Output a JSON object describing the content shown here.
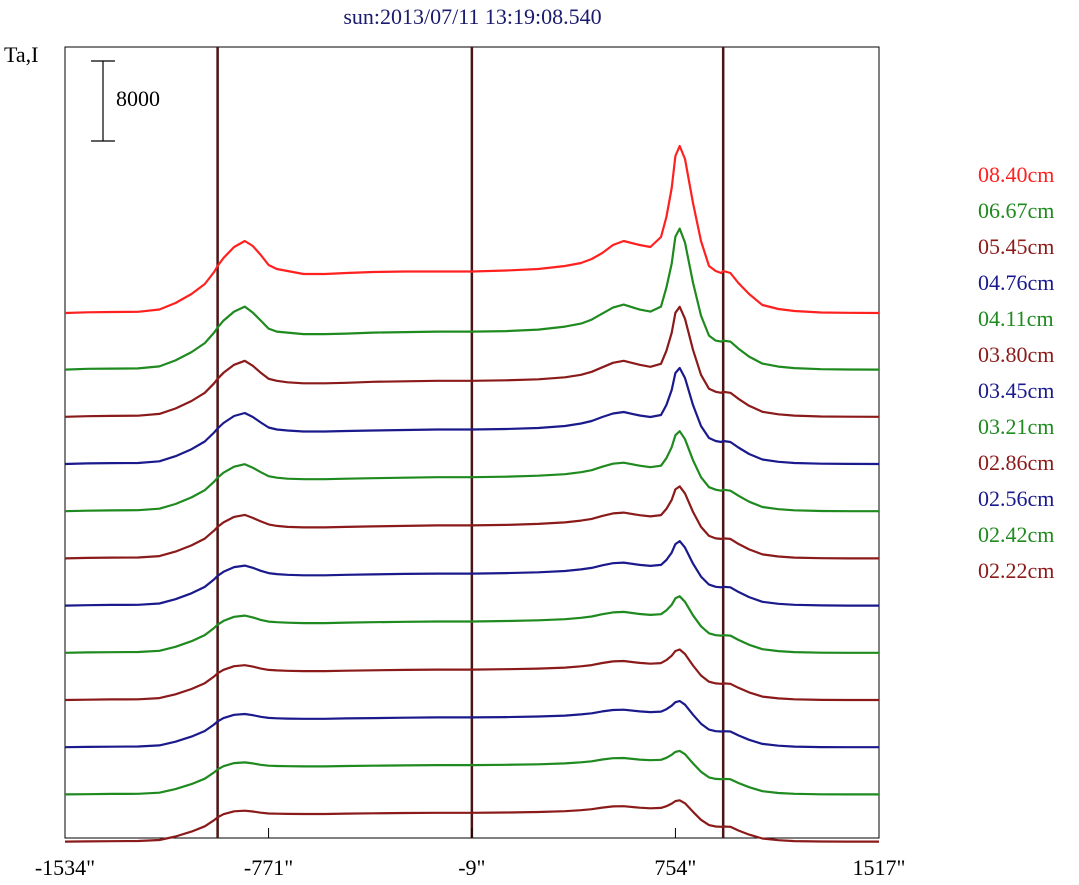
{
  "chart_data": {
    "type": "line",
    "title": "sun:2013/07/11 13:19:08.540",
    "ylabel": "Ta,I",
    "xlabel": "",
    "scale_bar_label": "8000",
    "xlim": [
      -1534,
      1517
    ],
    "x_ticks": [
      {
        "value": -1534,
        "label": "-1534\""
      },
      {
        "value": -771,
        "label": "-771\""
      },
      {
        "value": -9,
        "label": "-9\""
      },
      {
        "value": 754,
        "label": "754\""
      },
      {
        "value": 1517,
        "label": "1517\""
      }
    ],
    "vertical_lines_x": [
      -962,
      -9,
      933
    ],
    "grid": false,
    "legend_position": "right",
    "profile_x": [
      -1534,
      -1450,
      -1360,
      -1260,
      -1180,
      -1120,
      -1060,
      -1010,
      -975,
      -962,
      -940,
      -900,
      -860,
      -830,
      -800,
      -771,
      -740,
      -700,
      -640,
      -560,
      -480,
      -380,
      -260,
      -140,
      -9,
      120,
      240,
      340,
      400,
      440,
      480,
      520,
      560,
      620,
      660,
      700,
      720,
      740,
      754,
      770,
      790,
      820,
      850,
      880,
      905,
      925,
      933,
      960,
      990,
      1030,
      1080,
      1140,
      1200,
      1300,
      1400,
      1517
    ],
    "series": [
      {
        "name": "08.40cm",
        "color": "#ff2020",
        "baseline": 2300,
        "values": [
          0,
          70,
          100,
          120,
          350,
          1000,
          1900,
          2900,
          4100,
          4700,
          5500,
          6600,
          7200,
          6700,
          5800,
          4800,
          4400,
          4200,
          3900,
          3900,
          4000,
          4100,
          4150,
          4150,
          4150,
          4250,
          4400,
          4700,
          5000,
          5400,
          6000,
          6800,
          7200,
          6800,
          6600,
          7600,
          9600,
          12500,
          15700,
          16700,
          15400,
          11000,
          7200,
          4700,
          4200,
          4000,
          4200,
          4000,
          3000,
          1900,
          800,
          400,
          200,
          50,
          20,
          0
        ]
      },
      {
        "name": "06.67cm",
        "color": "#1f8a1f",
        "baseline": 2000,
        "values": [
          0,
          80,
          100,
          120,
          320,
          920,
          1750,
          2650,
          3700,
          4200,
          4900,
          5800,
          6300,
          5700,
          4900,
          4100,
          3800,
          3700,
          3550,
          3550,
          3600,
          3700,
          3750,
          3800,
          3800,
          3850,
          4000,
          4300,
          4600,
          5000,
          5600,
          6200,
          6500,
          6000,
          5800,
          6300,
          8200,
          10600,
          13300,
          14100,
          12700,
          8700,
          5400,
          3400,
          2900,
          2800,
          2900,
          2800,
          2100,
          1300,
          600,
          300,
          150,
          40,
          10,
          0
        ]
      },
      {
        "name": "05.45cm",
        "color": "#8b1a1a",
        "baseline": 1750,
        "values": [
          0,
          60,
          90,
          110,
          290,
          830,
          1580,
          2400,
          3350,
          3800,
          4400,
          5200,
          5600,
          5100,
          4400,
          3800,
          3600,
          3450,
          3350,
          3350,
          3400,
          3500,
          3550,
          3600,
          3600,
          3650,
          3750,
          3950,
          4200,
          4500,
          4950,
          5400,
          5600,
          5200,
          5000,
          5300,
          6600,
          8400,
          10400,
          11000,
          9800,
          6700,
          4200,
          2800,
          2500,
          2400,
          2500,
          2400,
          1800,
          1100,
          500,
          250,
          120,
          30,
          10,
          0
        ]
      },
      {
        "name": "04.76cm",
        "color": "#1a1a8c",
        "baseline": 1500,
        "values": [
          0,
          60,
          90,
          100,
          270,
          780,
          1480,
          2250,
          3150,
          3550,
          4100,
          4800,
          5100,
          4700,
          4150,
          3650,
          3450,
          3350,
          3250,
          3250,
          3300,
          3350,
          3400,
          3450,
          3450,
          3500,
          3600,
          3800,
          4050,
          4300,
          4700,
          5050,
          5200,
          4850,
          4700,
          4900,
          5900,
          7400,
          9100,
          9600,
          8600,
          5900,
          3800,
          2600,
          2300,
          2200,
          2300,
          2200,
          1650,
          1000,
          450,
          220,
          100,
          30,
          10,
          0
        ]
      },
      {
        "name": "04.11cm",
        "color": "#1f8a1f",
        "baseline": 1250,
        "values": [
          0,
          55,
          85,
          100,
          250,
          720,
          1380,
          2100,
          2950,
          3350,
          3850,
          4450,
          4700,
          4350,
          3900,
          3500,
          3350,
          3250,
          3200,
          3200,
          3250,
          3300,
          3350,
          3400,
          3400,
          3450,
          3550,
          3700,
          3900,
          4100,
          4450,
          4750,
          4850,
          4550,
          4400,
          4550,
          5300,
          6400,
          7600,
          8000,
          7200,
          5100,
          3400,
          2400,
          2150,
          2050,
          2150,
          2050,
          1550,
          950,
          420,
          200,
          90,
          25,
          8,
          0
        ]
      },
      {
        "name": "03.80cm",
        "color": "#8b1a1a",
        "baseline": 1000,
        "values": [
          0,
          50,
          80,
          90,
          230,
          680,
          1300,
          1980,
          2780,
          3150,
          3600,
          4150,
          4350,
          4050,
          3700,
          3400,
          3250,
          3150,
          3100,
          3100,
          3150,
          3200,
          3250,
          3300,
          3300,
          3350,
          3450,
          3600,
          3780,
          3950,
          4250,
          4500,
          4580,
          4320,
          4200,
          4330,
          4950,
          5850,
          6900,
          7200,
          6500,
          4650,
          3150,
          2250,
          2000,
          1950,
          2000,
          1950,
          1450,
          900,
          400,
          190,
          85,
          22,
          7,
          0
        ]
      },
      {
        "name": "03.45cm",
        "color": "#1a1a8c",
        "baseline": 750,
        "values": [
          0,
          45,
          70,
          85,
          210,
          640,
          1230,
          1870,
          2620,
          2970,
          3380,
          3850,
          4000,
          3780,
          3480,
          3250,
          3150,
          3080,
          3030,
          3030,
          3080,
          3120,
          3170,
          3200,
          3200,
          3250,
          3330,
          3460,
          3620,
          3770,
          4030,
          4240,
          4300,
          4070,
          3970,
          4070,
          4560,
          5300,
          6150,
          6450,
          5800,
          4200,
          2900,
          2100,
          1880,
          1830,
          1880,
          1830,
          1370,
          850,
          380,
          180,
          80,
          20,
          6,
          0
        ]
      },
      {
        "name": "03.21cm",
        "color": "#1f8a1f",
        "baseline": 500,
        "values": [
          0,
          40,
          65,
          80,
          200,
          600,
          1160,
          1770,
          2480,
          2810,
          3190,
          3600,
          3720,
          3540,
          3290,
          3120,
          3060,
          3010,
          2970,
          2970,
          3020,
          3060,
          3100,
          3130,
          3130,
          3180,
          3250,
          3360,
          3500,
          3630,
          3860,
          4040,
          4090,
          3880,
          3790,
          3860,
          4240,
          4800,
          5450,
          5650,
          5100,
          3750,
          2650,
          1950,
          1760,
          1720,
          1760,
          1720,
          1290,
          800,
          360,
          170,
          75,
          18,
          5,
          0
        ]
      },
      {
        "name": "02.86cm",
        "color": "#8b1a1a",
        "baseline": 250,
        "values": [
          0,
          35,
          60,
          75,
          190,
          570,
          1100,
          1680,
          2350,
          2670,
          3020,
          3380,
          3480,
          3340,
          3140,
          3010,
          2960,
          2920,
          2890,
          2890,
          2930,
          2970,
          3010,
          3040,
          3040,
          3080,
          3140,
          3240,
          3370,
          3490,
          3700,
          3860,
          3900,
          3710,
          3630,
          3690,
          3990,
          4430,
          4900,
          5050,
          4600,
          3450,
          2450,
          1830,
          1660,
          1620,
          1660,
          1620,
          1220,
          760,
          340,
          160,
          70,
          16,
          5,
          0
        ]
      },
      {
        "name": "02.56cm",
        "color": "#1a1a8c",
        "baseline": 0,
        "values": [
          0,
          30,
          55,
          70,
          180,
          550,
          1060,
          1620,
          2270,
          2580,
          2910,
          3240,
          3320,
          3200,
          3040,
          2930,
          2890,
          2860,
          2840,
          2840,
          2880,
          2910,
          2950,
          2980,
          2980,
          3010,
          3070,
          3160,
          3280,
          3390,
          3580,
          3720,
          3750,
          3580,
          3510,
          3560,
          3800,
          4150,
          4500,
          4620,
          4250,
          3250,
          2350,
          1760,
          1600,
          1570,
          1600,
          1570,
          1180,
          740,
          330,
          150,
          65,
          15,
          4,
          0
        ]
      },
      {
        "name": "02.42cm",
        "color": "#1f8a1f",
        "baseline": -250,
        "values": [
          0,
          28,
          50,
          65,
          170,
          530,
          1030,
          1570,
          2200,
          2500,
          2820,
          3130,
          3200,
          3100,
          2960,
          2870,
          2840,
          2820,
          2800,
          2800,
          2840,
          2870,
          2900,
          2930,
          2930,
          2960,
          3010,
          3100,
          3210,
          3310,
          3490,
          3620,
          3640,
          3480,
          3420,
          3460,
          3660,
          3960,
          4250,
          4350,
          4020,
          3100,
          2260,
          1700,
          1550,
          1520,
          1550,
          1520,
          1140,
          720,
          320,
          145,
          60,
          14,
          4,
          0
        ]
      },
      {
        "name": "02.22cm",
        "color": "#8b1a1a",
        "baseline": -500,
        "values": [
          0,
          25,
          45,
          60,
          160,
          510,
          1000,
          1530,
          2140,
          2430,
          2740,
          3030,
          3090,
          3010,
          2890,
          2810,
          2790,
          2770,
          2760,
          2760,
          2800,
          2830,
          2860,
          2880,
          2880,
          2910,
          2960,
          3040,
          3140,
          3240,
          3400,
          3520,
          3540,
          3390,
          3330,
          3370,
          3540,
          3800,
          4050,
          4130,
          3830,
          2980,
          2180,
          1650,
          1510,
          1480,
          1510,
          1480,
          1110,
          700,
          310,
          140,
          58,
          13,
          3,
          0
        ]
      }
    ]
  }
}
